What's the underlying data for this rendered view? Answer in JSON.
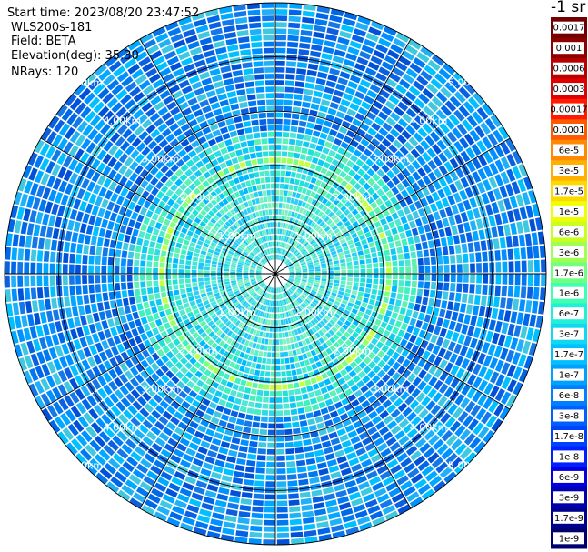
{
  "info": {
    "start_time": "Start time: 2023/08/20 23:47:52",
    "device": "WLS200s-181",
    "field": "Field: BETA",
    "elevation": "Elevation(deg): 35.30",
    "nrays": "NRays: 120"
  },
  "chart_data": {
    "type": "heatmap",
    "projection": "polar",
    "field": "BETA",
    "n_rays": 120,
    "range_unit": "km",
    "range_max": 5.0,
    "range_rings": [
      1.0,
      2.0,
      3.0,
      4.0,
      5.0
    ],
    "range_labels": [
      "1.00km",
      "2.00km",
      "3.00km",
      "4.00km",
      "5.00km"
    ],
    "spokes_every_deg": 30,
    "color_scale": "log",
    "legend_title": "-1 sr",
    "legend": [
      {
        "label": "0.0017",
        "color": "#720000"
      },
      {
        "label": "0.001",
        "color": "#8c0000"
      },
      {
        "label": "0.0006",
        "color": "#b80000"
      },
      {
        "label": "0.0003",
        "color": "#e00000"
      },
      {
        "label": "0.00017",
        "color": "#ff1a00"
      },
      {
        "label": "0.0001",
        "color": "#ff5a00"
      },
      {
        "label": "6e-5",
        "color": "#ff8a00"
      },
      {
        "label": "3e-5",
        "color": "#ffb000"
      },
      {
        "label": "1.7e-5",
        "color": "#ffd800"
      },
      {
        "label": "1e-5",
        "color": "#f0ff00"
      },
      {
        "label": "6e-6",
        "color": "#c8ff20"
      },
      {
        "label": "3e-6",
        "color": "#a0ff50"
      },
      {
        "label": "1.7e-6",
        "color": "#70ff80"
      },
      {
        "label": "1e-6",
        "color": "#40ffb0"
      },
      {
        "label": "6e-7",
        "color": "#20f0d8"
      },
      {
        "label": "3e-7",
        "color": "#10d8f0"
      },
      {
        "label": "1.7e-7",
        "color": "#00c0ff"
      },
      {
        "label": "1e-7",
        "color": "#00a0ff"
      },
      {
        "label": "6e-8",
        "color": "#0080ff"
      },
      {
        "label": "3e-8",
        "color": "#0060ff"
      },
      {
        "label": "1.7e-8",
        "color": "#0040ff"
      },
      {
        "label": "1e-8",
        "color": "#0020ff"
      },
      {
        "label": "6e-9",
        "color": "#0000e0"
      },
      {
        "label": "3e-9",
        "color": "#0000b0"
      },
      {
        "label": "1.7e-9",
        "color": "#000090"
      },
      {
        "label": "1e-9",
        "color": "#000070"
      }
    ],
    "approx_beta_by_range": [
      {
        "range_km": 0.5,
        "beta": "3e-7"
      },
      {
        "range_km": 1.5,
        "beta": "1e-6"
      },
      {
        "range_km": 2.0,
        "beta": "6e-6"
      },
      {
        "range_km": 3.0,
        "beta": "3e-8"
      },
      {
        "range_km": 4.0,
        "beta": "3e-8"
      },
      {
        "range_km": 5.0,
        "beta": "3e-8"
      }
    ]
  }
}
